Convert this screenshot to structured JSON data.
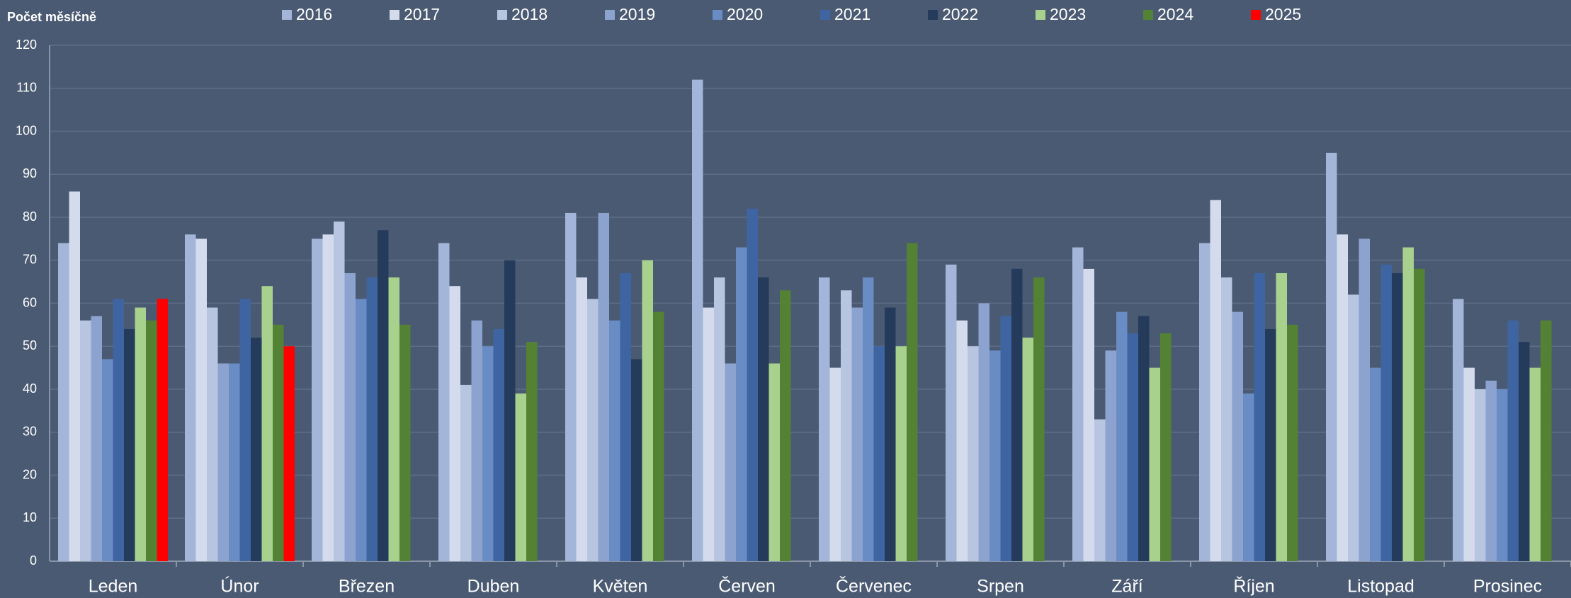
{
  "chart_data": {
    "type": "bar",
    "y_label": "Počet měsíčně",
    "categories": [
      "Leden",
      "Únor",
      "Březen",
      "Duben",
      "Květen",
      "Červen",
      "Červenec",
      "Srpen",
      "Září",
      "Říjen",
      "Listopad",
      "Prosinec"
    ],
    "series": [
      {
        "name": "2016",
        "color": "#a3b5d8",
        "values": [
          74,
          76,
          75,
          74,
          81,
          112,
          66,
          69,
          73,
          74,
          95,
          61
        ]
      },
      {
        "name": "2017",
        "color": "#d3dbec",
        "values": [
          86,
          75,
          76,
          64,
          66,
          59,
          45,
          56,
          68,
          84,
          76,
          45
        ]
      },
      {
        "name": "2018",
        "color": "#b8c5e1",
        "values": [
          56,
          59,
          79,
          41,
          61,
          66,
          63,
          50,
          33,
          66,
          62,
          40
        ]
      },
      {
        "name": "2019",
        "color": "#8ca3d0",
        "values": [
          57,
          46,
          67,
          56,
          81,
          46,
          59,
          60,
          49,
          58,
          75,
          42
        ]
      },
      {
        "name": "2020",
        "color": "#6a8cc4",
        "values": [
          47,
          46,
          61,
          50,
          56,
          73,
          66,
          49,
          58,
          39,
          45,
          40
        ]
      },
      {
        "name": "2021",
        "color": "#3e65a1",
        "values": [
          61,
          61,
          66,
          54,
          67,
          82,
          50,
          57,
          53,
          67,
          69,
          56
        ]
      },
      {
        "name": "2022",
        "color": "#253b5b",
        "values": [
          54,
          52,
          77,
          70,
          47,
          66,
          59,
          68,
          57,
          54,
          67,
          51
        ]
      },
      {
        "name": "2023",
        "color": "#a9d18e",
        "values": [
          59,
          64,
          66,
          39,
          70,
          46,
          50,
          52,
          45,
          67,
          73,
          45
        ]
      },
      {
        "name": "2024",
        "color": "#548235",
        "values": [
          56,
          55,
          55,
          51,
          58,
          63,
          74,
          66,
          53,
          55,
          68,
          56
        ]
      },
      {
        "name": "2025",
        "color": "#ff0000",
        "values": [
          61,
          50,
          null,
          null,
          null,
          null,
          null,
          null,
          null,
          null,
          null,
          null
        ]
      }
    ],
    "ylim": [
      0,
      120
    ],
    "yticks": [
      0,
      10,
      20,
      30,
      40,
      50,
      60,
      70,
      80,
      90,
      100,
      110,
      120
    ],
    "grid": true
  }
}
